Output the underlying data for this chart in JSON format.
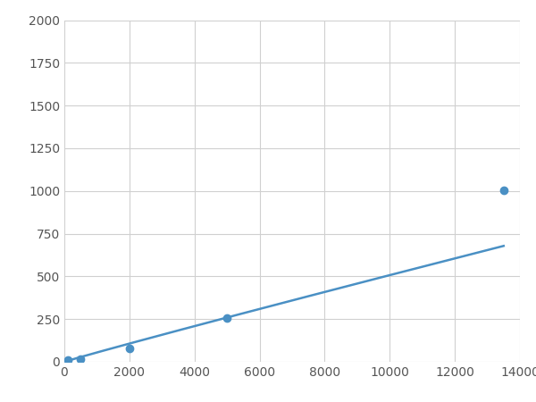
{
  "x": [
    100,
    500,
    2000,
    5000,
    13500
  ],
  "y": [
    10,
    15,
    80,
    255,
    1005
  ],
  "line_color": "#4a90c4",
  "marker_color": "#4a90c4",
  "marker_size": 6,
  "xlim": [
    0,
    14000
  ],
  "ylim": [
    0,
    2000
  ],
  "xticks": [
    0,
    2000,
    4000,
    6000,
    8000,
    10000,
    12000,
    14000
  ],
  "yticks": [
    0,
    250,
    500,
    750,
    1000,
    1250,
    1500,
    1750,
    2000
  ],
  "grid_color": "#d0d0d0",
  "bg_color": "#ffffff",
  "fig_bg_color": "#ffffff",
  "linewidth": 1.8
}
